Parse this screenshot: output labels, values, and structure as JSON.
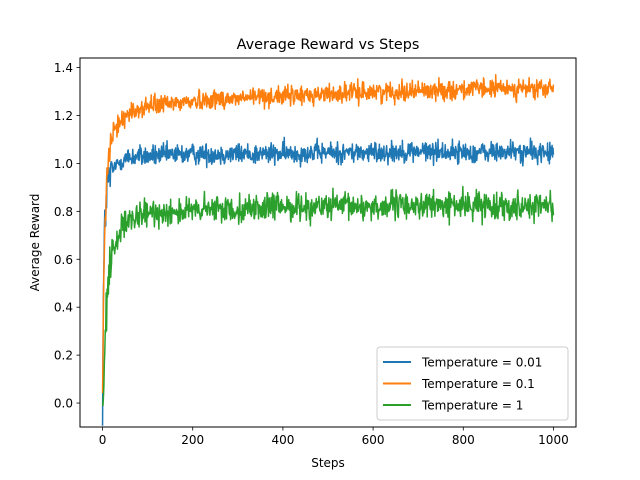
{
  "chart_data": {
    "type": "line",
    "title": "Average Reward vs Steps",
    "xlabel": "Steps",
    "ylabel": "Average Reward",
    "xlim": [
      -50,
      1050
    ],
    "ylim": [
      -0.1,
      1.44
    ],
    "xticks": [
      0,
      200,
      400,
      600,
      800,
      1000
    ],
    "yticks": [
      0.0,
      0.2,
      0.4,
      0.6,
      0.8,
      1.0,
      1.2,
      1.4
    ],
    "xtick_labels": [
      "0",
      "200",
      "400",
      "600",
      "800",
      "1000"
    ],
    "ytick_labels": [
      "0.0",
      "0.2",
      "0.4",
      "0.6",
      "0.8",
      "1.0",
      "1.2",
      "1.4"
    ],
    "grid": false,
    "legend_position": "lower-right",
    "series": [
      {
        "name": "Temperature = 0.01",
        "color": "#1f77b4",
        "x": [
          0,
          2,
          5,
          10,
          15,
          20,
          30,
          40,
          50,
          75,
          100,
          150,
          200,
          250,
          300,
          350,
          400,
          450,
          500,
          550,
          600,
          650,
          700,
          750,
          800,
          850,
          900,
          950,
          1000
        ],
        "y": [
          -0.02,
          0.45,
          0.75,
          0.9,
          0.94,
          0.97,
          0.99,
          1.01,
          1.02,
          1.03,
          1.03,
          1.035,
          1.04,
          1.04,
          1.04,
          1.04,
          1.04,
          1.045,
          1.045,
          1.045,
          1.045,
          1.05,
          1.05,
          1.05,
          1.045,
          1.045,
          1.05,
          1.045,
          1.045
        ],
        "noise": 0.022
      },
      {
        "name": "Temperature = 0.1",
        "color": "#ff7f0e",
        "x": [
          0,
          2,
          5,
          10,
          15,
          20,
          30,
          40,
          50,
          75,
          100,
          150,
          200,
          250,
          300,
          350,
          400,
          450,
          500,
          550,
          600,
          650,
          700,
          750,
          800,
          850,
          900,
          950,
          1000
        ],
        "y": [
          0.0,
          0.4,
          0.7,
          0.95,
          1.05,
          1.1,
          1.15,
          1.18,
          1.2,
          1.22,
          1.24,
          1.25,
          1.26,
          1.27,
          1.27,
          1.28,
          1.28,
          1.285,
          1.29,
          1.295,
          1.3,
          1.3,
          1.305,
          1.305,
          1.31,
          1.31,
          1.315,
          1.31,
          1.31
        ],
        "noise": 0.02
      },
      {
        "name": "Temperature = 1",
        "color": "#2ca02c",
        "x": [
          0,
          2,
          5,
          10,
          15,
          20,
          30,
          40,
          50,
          75,
          100,
          150,
          200,
          250,
          300,
          350,
          400,
          450,
          500,
          550,
          600,
          650,
          700,
          750,
          800,
          850,
          900,
          950,
          1000
        ],
        "y": [
          -0.03,
          0.1,
          0.25,
          0.45,
          0.55,
          0.62,
          0.68,
          0.72,
          0.74,
          0.77,
          0.79,
          0.8,
          0.8,
          0.81,
          0.81,
          0.815,
          0.82,
          0.82,
          0.82,
          0.82,
          0.82,
          0.825,
          0.825,
          0.825,
          0.825,
          0.825,
          0.825,
          0.825,
          0.825
        ],
        "noise": 0.028
      }
    ]
  }
}
